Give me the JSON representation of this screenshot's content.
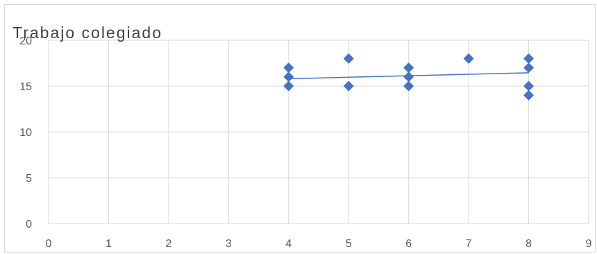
{
  "chart_data": {
    "type": "scatter",
    "title": "Trabajo colegiado",
    "xlabel": "",
    "ylabel": "",
    "xlim": [
      0,
      9
    ],
    "ylim": [
      0,
      20
    ],
    "x_ticks": [
      0,
      1,
      2,
      3,
      4,
      5,
      6,
      7,
      8,
      9
    ],
    "y_ticks": [
      0,
      5,
      10,
      15,
      20
    ],
    "grid": true,
    "legend": "none",
    "series": [
      {
        "marker": "diamond",
        "color": "#4472C4",
        "points": [
          {
            "x": 4,
            "y": 17
          },
          {
            "x": 4,
            "y": 16
          },
          {
            "x": 4,
            "y": 15
          },
          {
            "x": 5,
            "y": 18
          },
          {
            "x": 5,
            "y": 15
          },
          {
            "x": 6,
            "y": 17
          },
          {
            "x": 6,
            "y": 16
          },
          {
            "x": 6,
            "y": 15
          },
          {
            "x": 7,
            "y": 18
          },
          {
            "x": 8,
            "y": 18
          },
          {
            "x": 8,
            "y": 17
          },
          {
            "x": 8,
            "y": 15
          },
          {
            "x": 8,
            "y": 14
          }
        ],
        "trendline": {
          "type": "linear",
          "from": {
            "x": 4,
            "y": 15.8
          },
          "to": {
            "x": 8,
            "y": 16.45
          }
        }
      }
    ],
    "colors": {
      "gridline": "#d9d9d9",
      "marker": "#4472C4",
      "trendline": "#4472C4",
      "text": "#595959"
    }
  }
}
